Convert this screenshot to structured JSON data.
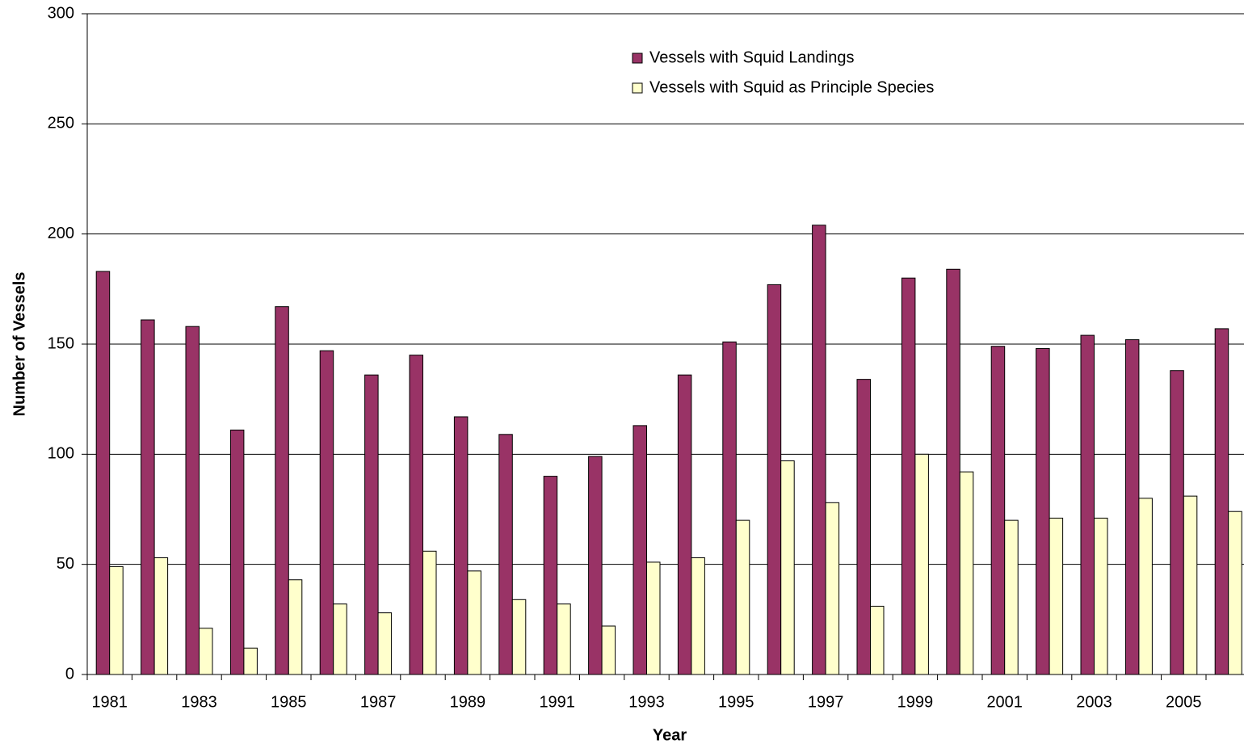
{
  "chart_data": {
    "type": "bar",
    "x_label": "Year",
    "y_label": "Number of Vessels",
    "categories": [
      "1981",
      null,
      "1983",
      null,
      "1985",
      null,
      "1987",
      null,
      "1989",
      null,
      "1991",
      null,
      "1993",
      null,
      "1995",
      null,
      "1997",
      null,
      "1999",
      null,
      "2001",
      null,
      "2003",
      null,
      "2005",
      null
    ],
    "series": [
      {
        "name": "Vessels with Squid Landings",
        "color": "#993366",
        "values": [
          183,
          161,
          158,
          111,
          167,
          147,
          136,
          145,
          117,
          109,
          90,
          99,
          113,
          136,
          151,
          177,
          204,
          134,
          180,
          184,
          149,
          148,
          154,
          152,
          138,
          157
        ]
      },
      {
        "name": "Vessels with Squid as Principle Species",
        "color": "#FFFFCC",
        "values": [
          49,
          53,
          21,
          12,
          43,
          32,
          28,
          56,
          47,
          34,
          32,
          22,
          51,
          53,
          70,
          97,
          78,
          31,
          100,
          92,
          70,
          71,
          71,
          80,
          81,
          74
        ]
      }
    ],
    "ylim": [
      0,
      300
    ],
    "yticks": [
      0,
      50,
      100,
      150,
      200,
      250,
      300
    ],
    "grid": true
  }
}
